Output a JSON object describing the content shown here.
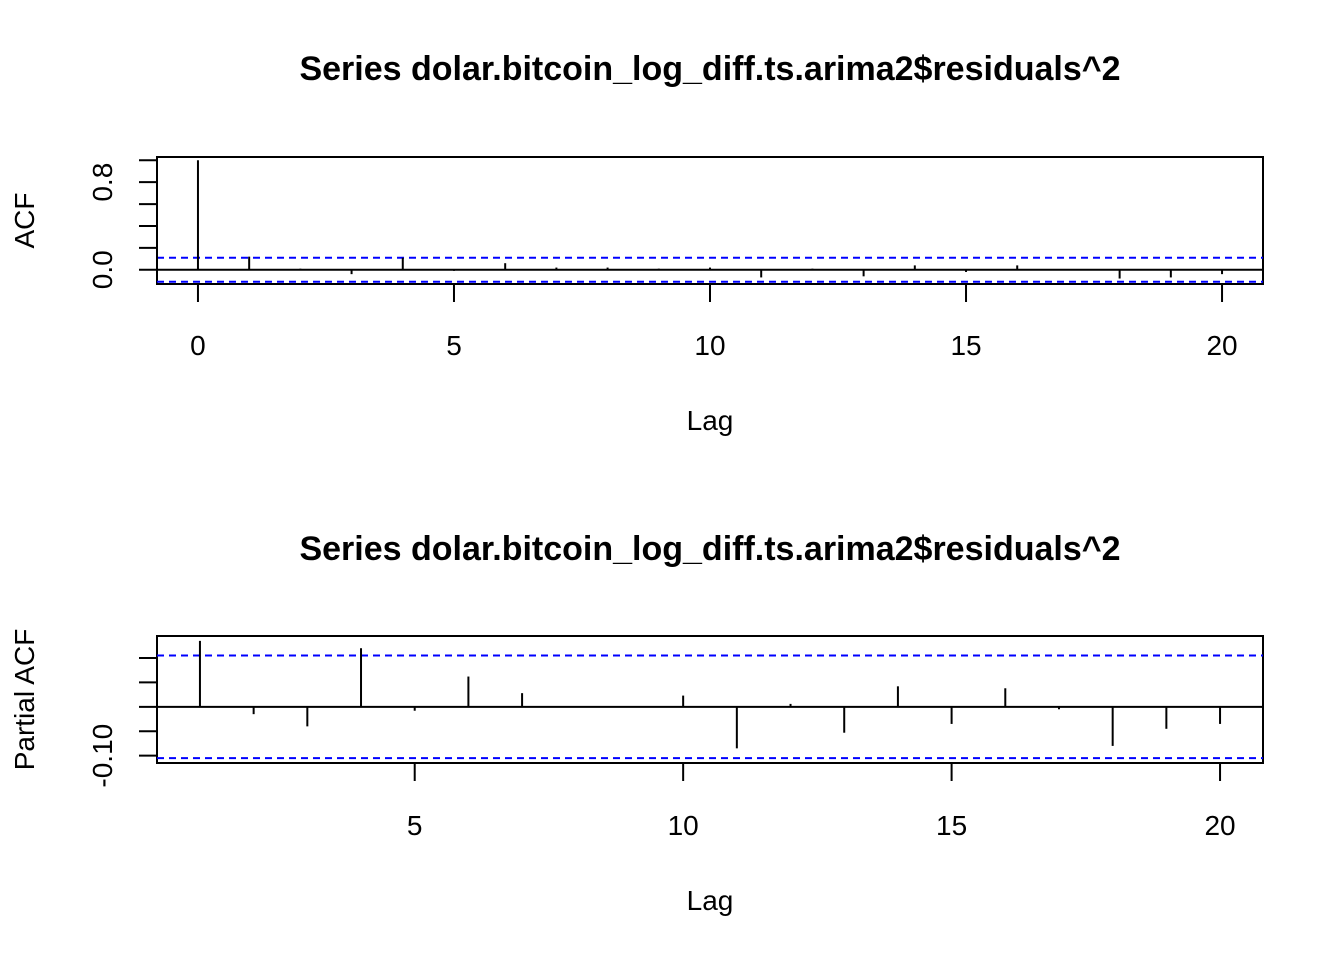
{
  "chart_data": [
    {
      "type": "bar",
      "subtype": "acf",
      "title": "Series  dolar.bitcoin_log_diff.ts.arima2$residuals^2",
      "xlabel": "Lag",
      "ylabel": "ACF",
      "xlim": [
        -0.8,
        20.8
      ],
      "ylim": [
        -0.13,
        1.03
      ],
      "x_ticks": [
        0,
        5,
        10,
        15,
        20
      ],
      "y_ticks": [
        0.0,
        0.2,
        0.4,
        0.6,
        0.8,
        1.0
      ],
      "y_tick_labels": [
        "0.0",
        "0.8"
      ],
      "y_tick_label_values": [
        0.0,
        0.8
      ],
      "ci": 0.11,
      "ci_color": "#0000ff",
      "x": [
        0,
        1,
        2,
        3,
        4,
        5,
        6,
        7,
        8,
        9,
        10,
        11,
        12,
        13,
        14,
        15,
        16,
        17,
        18,
        19,
        20
      ],
      "values": [
        1.0,
        0.12,
        0.01,
        -0.04,
        0.11,
        -0.01,
        0.06,
        0.02,
        0.02,
        0.01,
        0.02,
        -0.07,
        0.01,
        -0.06,
        0.04,
        -0.02,
        0.04,
        0.0,
        -0.08,
        -0.07,
        -0.04
      ]
    },
    {
      "type": "bar",
      "subtype": "pacf",
      "title": "Series  dolar.bitcoin_log_diff.ts.arima2$residuals^2",
      "xlabel": "Lag",
      "ylabel": "Partial ACF",
      "xlim": [
        0.2,
        20.8
      ],
      "ylim": [
        -0.115,
        0.145
      ],
      "x_ticks": [
        5,
        10,
        15,
        20
      ],
      "y_ticks": [
        -0.1,
        -0.05,
        0.0,
        0.05,
        0.1
      ],
      "y_tick_labels": [
        "-0.10"
      ],
      "y_tick_label_values": [
        -0.1
      ],
      "ci": 0.105,
      "ci_color": "#0000ff",
      "x": [
        1,
        2,
        3,
        4,
        5,
        6,
        7,
        8,
        9,
        10,
        11,
        12,
        13,
        14,
        15,
        16,
        17,
        18,
        19,
        20
      ],
      "values": [
        0.135,
        -0.015,
        -0.04,
        0.12,
        -0.008,
        0.062,
        0.028,
        0.0,
        0.0,
        0.023,
        -0.085,
        0.006,
        -0.053,
        0.042,
        -0.035,
        0.038,
        -0.005,
        -0.08,
        -0.045,
        -0.035
      ]
    }
  ]
}
